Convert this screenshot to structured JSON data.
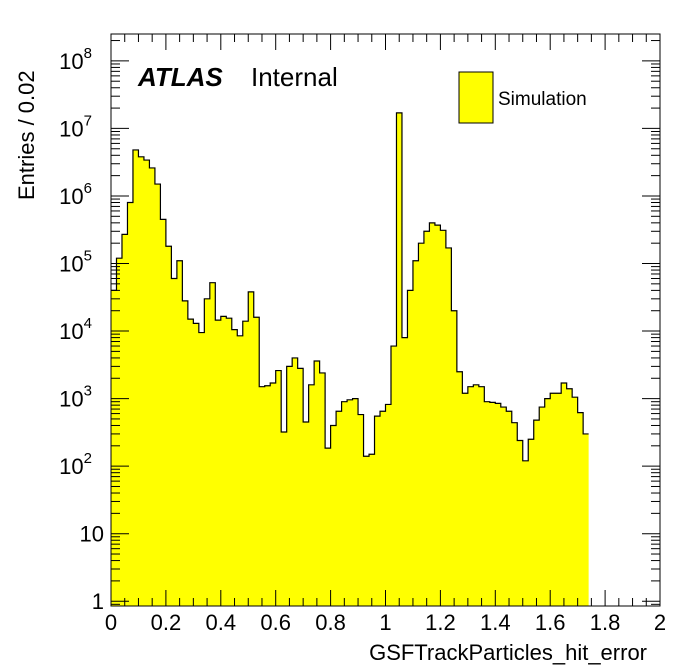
{
  "chart_data": {
    "type": "histogram",
    "xlabel": "GSFTrackParticles_hit_error",
    "ylabel": "Entries / 0.02",
    "x_range": [
      0,
      2
    ],
    "y_range": [
      0.85,
      250000000
    ],
    "y_scale": "log",
    "bin_width": 0.02,
    "x_ticks": [
      0,
      0.2,
      0.4,
      0.6,
      0.8,
      1,
      1.2,
      1.4,
      1.6,
      1.8,
      2
    ],
    "x_tick_labels": [
      "0",
      "0.2",
      "0.4",
      "0.6",
      "0.8",
      "1",
      "1.2",
      "1.4",
      "1.6",
      "1.8",
      "2"
    ],
    "y_ticks": [
      {
        "value": 1,
        "base": "1",
        "exp": ""
      },
      {
        "value": 10,
        "base": "10",
        "exp": ""
      },
      {
        "value": 100,
        "base": "10",
        "exp": "2"
      },
      {
        "value": 1000,
        "base": "10",
        "exp": "3"
      },
      {
        "value": 10000,
        "base": "10",
        "exp": "4"
      },
      {
        "value": 100000,
        "base": "10",
        "exp": "5"
      },
      {
        "value": 1000000,
        "base": "10",
        "exp": "6"
      },
      {
        "value": 10000000,
        "base": "10",
        "exp": "7"
      },
      {
        "value": 100000000,
        "base": "10",
        "exp": "8"
      }
    ],
    "fill_color": "#ffff00",
    "line_color": "#000000",
    "grid": false,
    "legend_position": "top-right",
    "series": [
      {
        "name": "Simulation",
        "values": [
          40000,
          120000,
          270000,
          800000,
          4800000,
          3800000,
          3400000,
          2600000,
          1500000,
          450000,
          180000,
          60000,
          110000,
          28000,
          15000,
          13000,
          9500,
          30000,
          52000,
          14500,
          16500,
          15500,
          10500,
          8500,
          14000,
          38000,
          16000,
          1500,
          1550,
          1700,
          2600,
          320,
          3000,
          4000,
          2800,
          450,
          1600,
          3600,
          2400,
          185,
          400,
          650,
          900,
          960,
          1000,
          580,
          140,
          150,
          550,
          650,
          820,
          6000,
          17000000,
          8000,
          40000,
          110000,
          200000,
          300000,
          400000,
          370000,
          310000,
          170000,
          20000,
          2500,
          1200,
          1500,
          1600,
          1500,
          900,
          880,
          850,
          750,
          650,
          440,
          240,
          120,
          250,
          480,
          750,
          1000,
          1200,
          1200,
          1700,
          1400,
          1050,
          620,
          300
        ]
      }
    ],
    "annotations": {
      "experiment": "ATLAS",
      "status": "Internal"
    }
  }
}
